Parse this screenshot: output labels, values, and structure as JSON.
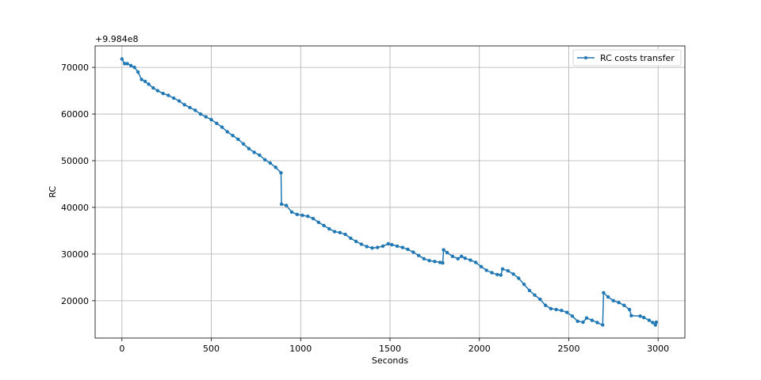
{
  "chart_data": {
    "type": "line",
    "title": "",
    "xlabel": "Seconds",
    "ylabel": "RC",
    "offset_label": "+9.984e8",
    "xlim": [
      -150,
      3150
    ],
    "ylim": [
      12000,
      74600
    ],
    "xticks": [
      0,
      500,
      1000,
      1500,
      2000,
      2500,
      3000
    ],
    "yticks": [
      20000,
      30000,
      40000,
      50000,
      60000,
      70000
    ],
    "xtick_labels": [
      "0",
      "500",
      "1000",
      "1500",
      "2000",
      "2500",
      "3000"
    ],
    "ytick_labels": [
      "20000",
      "30000",
      "40000",
      "50000",
      "60000",
      "70000"
    ],
    "grid": true,
    "legend": {
      "position": "top-right",
      "entries": [
        "RC costs transfer"
      ]
    },
    "color": "#1f77b4",
    "series": [
      {
        "name": "RC costs transfer",
        "x": [
          0,
          15,
          30,
          50,
          70,
          90,
          110,
          130,
          150,
          175,
          200,
          230,
          260,
          290,
          320,
          350,
          380,
          410,
          440,
          470,
          500,
          530,
          560,
          590,
          620,
          650,
          680,
          710,
          740,
          770,
          800,
          830,
          860,
          890,
          893,
          920,
          950,
          980,
          1010,
          1040,
          1070,
          1100,
          1130,
          1160,
          1190,
          1220,
          1250,
          1280,
          1310,
          1340,
          1370,
          1400,
          1430,
          1460,
          1490,
          1510,
          1540,
          1570,
          1600,
          1630,
          1660,
          1690,
          1720,
          1750,
          1780,
          1795,
          1800,
          1820,
          1850,
          1880,
          1900,
          1920,
          1950,
          1980,
          2010,
          2040,
          2070,
          2100,
          2120,
          2130,
          2160,
          2190,
          2220,
          2250,
          2280,
          2310,
          2340,
          2370,
          2400,
          2430,
          2460,
          2490,
          2520,
          2550,
          2580,
          2600,
          2630,
          2660,
          2690,
          2695,
          2720,
          2750,
          2780,
          2810,
          2840,
          2850,
          2900,
          2920,
          2950,
          2970,
          2985,
          2990
        ],
        "y": [
          71800,
          70800,
          70800,
          70400,
          70000,
          69000,
          67400,
          67000,
          66400,
          65600,
          65000,
          64400,
          64000,
          63400,
          62800,
          62000,
          61400,
          60800,
          60000,
          59400,
          58800,
          58000,
          57200,
          56200,
          55400,
          54600,
          53600,
          52600,
          51800,
          51200,
          50200,
          49500,
          48600,
          47400,
          40700,
          40400,
          39000,
          38500,
          38300,
          38100,
          37600,
          36800,
          36100,
          35400,
          34800,
          34600,
          34200,
          33400,
          32700,
          32100,
          31600,
          31300,
          31400,
          31700,
          32200,
          32000,
          31700,
          31400,
          31000,
          30400,
          29700,
          29000,
          28600,
          28400,
          28200,
          28100,
          30900,
          30300,
          29500,
          29000,
          29500,
          29100,
          28700,
          28200,
          27300,
          26500,
          26000,
          25600,
          25500,
          26800,
          26400,
          25700,
          24800,
          23500,
          22200,
          21200,
          20300,
          19000,
          18300,
          18100,
          17900,
          17500,
          16700,
          15600,
          15400,
          16300,
          15800,
          15300,
          14800,
          21700,
          20800,
          20000,
          19600,
          19000,
          18100,
          16800,
          16700,
          16400,
          15800,
          15300,
          14800,
          15400
        ]
      }
    ]
  }
}
